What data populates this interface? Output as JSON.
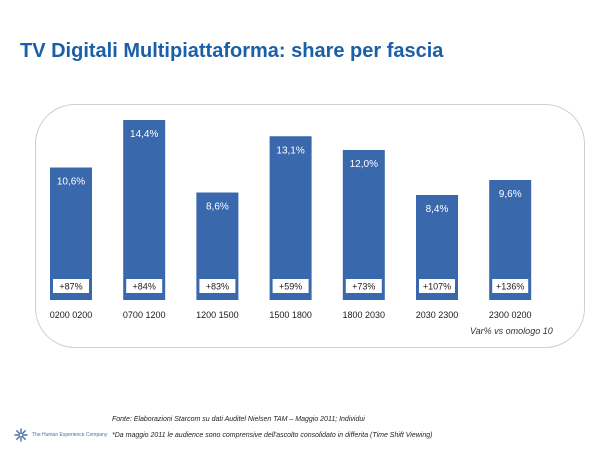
{
  "title": "TV Digitali Multipiattaforma: share per fascia",
  "chart_data": {
    "type": "bar",
    "categories": [
      "0200 0200",
      "0700 1200",
      "1200 1500",
      "1500 1800",
      "1800 2030",
      "2030 2300",
      "2300 0200"
    ],
    "values": [
      10.6,
      14.4,
      8.6,
      13.1,
      12.0,
      8.4,
      9.6
    ],
    "value_labels": [
      "10,6%",
      "14,4%",
      "8,6%",
      "13,1%",
      "12,0%",
      "8,4%",
      "9,6%"
    ],
    "variation_labels": [
      "+87%",
      "+84%",
      "+83%",
      "+59%",
      "+73%",
      "+107%",
      "+136%"
    ],
    "bar_color": "#3a68ad",
    "ylim": [
      0,
      16
    ],
    "grid": false,
    "legend_note": "Var% vs omologo 10"
  },
  "source": "Fonte: Elaborazioni Starcom su dati Auditel Nielsen TAM – Maggio 2011; Individui",
  "note": "*Da maggio 2011 le audience sono comprensive dell'ascolto consolidato in differita (Time Shift Viewing)",
  "logo": {
    "text": "The Human Experience Company",
    "icon": "starburst-icon",
    "color": "#4a6fa5"
  }
}
